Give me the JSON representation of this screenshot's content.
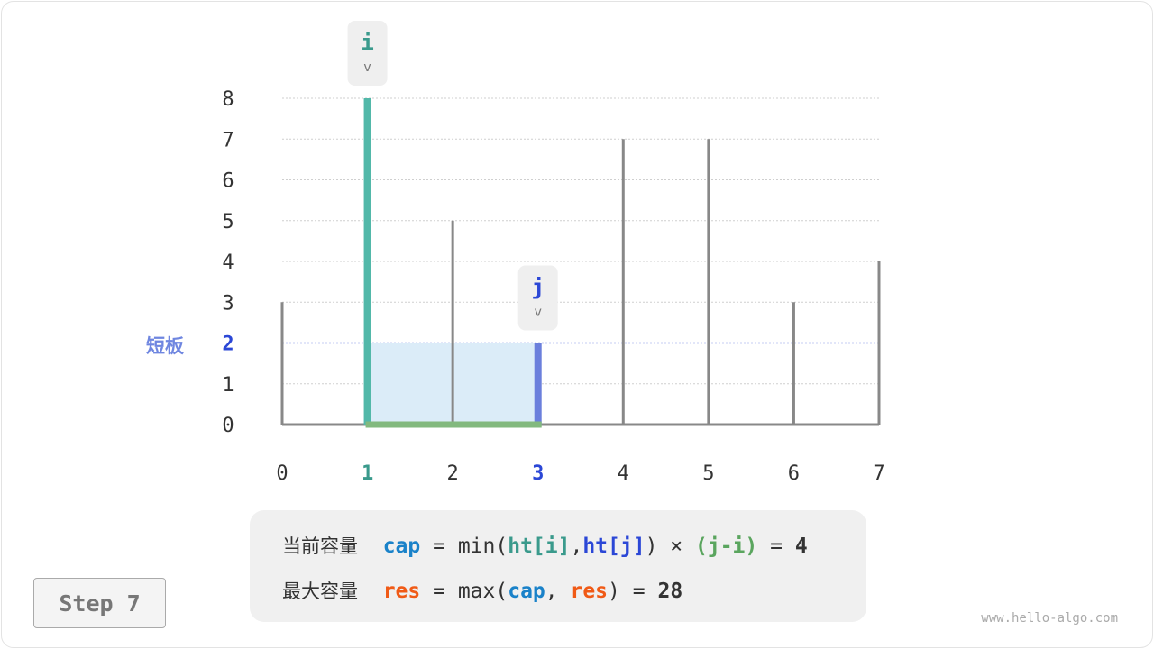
{
  "chart_data": {
    "type": "bar",
    "categories": [
      "0",
      "1",
      "2",
      "3",
      "4",
      "5",
      "6",
      "7"
    ],
    "values": [
      3,
      8,
      5,
      2,
      7,
      7,
      3,
      4
    ],
    "ylim": [
      0,
      8
    ],
    "yticks": [
      "0",
      "1",
      "2",
      "3",
      "4",
      "5",
      "6",
      "7",
      "8"
    ],
    "grid": true,
    "pointer_i": {
      "label": "i",
      "index": 1,
      "color": "#52b8a9"
    },
    "pointer_j": {
      "label": "j",
      "index": 3,
      "color": "#6b7fdc"
    },
    "short_board": {
      "label": "短板",
      "value": 2,
      "color": "#6f86e0"
    },
    "fill_color": "#dbecf8",
    "base_color": "#82b97e",
    "bar_color": "#888888"
  },
  "formula": {
    "line1": {
      "label": "当前容量",
      "var": "cap",
      "eq": "=",
      "fn": "min(",
      "a": "ht[i]",
      "comma": ",",
      "b": "ht[j]",
      "close": ")",
      "times": "×",
      "width": "(j-i)",
      "eq2": "=",
      "result": "4"
    },
    "line2": {
      "label": "最大容量",
      "var": "res",
      "eq": "=",
      "fn": "max(",
      "a": "cap",
      "comma": ",",
      "b": "res",
      "close": ")",
      "eq2": "=",
      "result": "28"
    }
  },
  "step_label": "Step 7",
  "watermark": "www.hello-algo.com"
}
